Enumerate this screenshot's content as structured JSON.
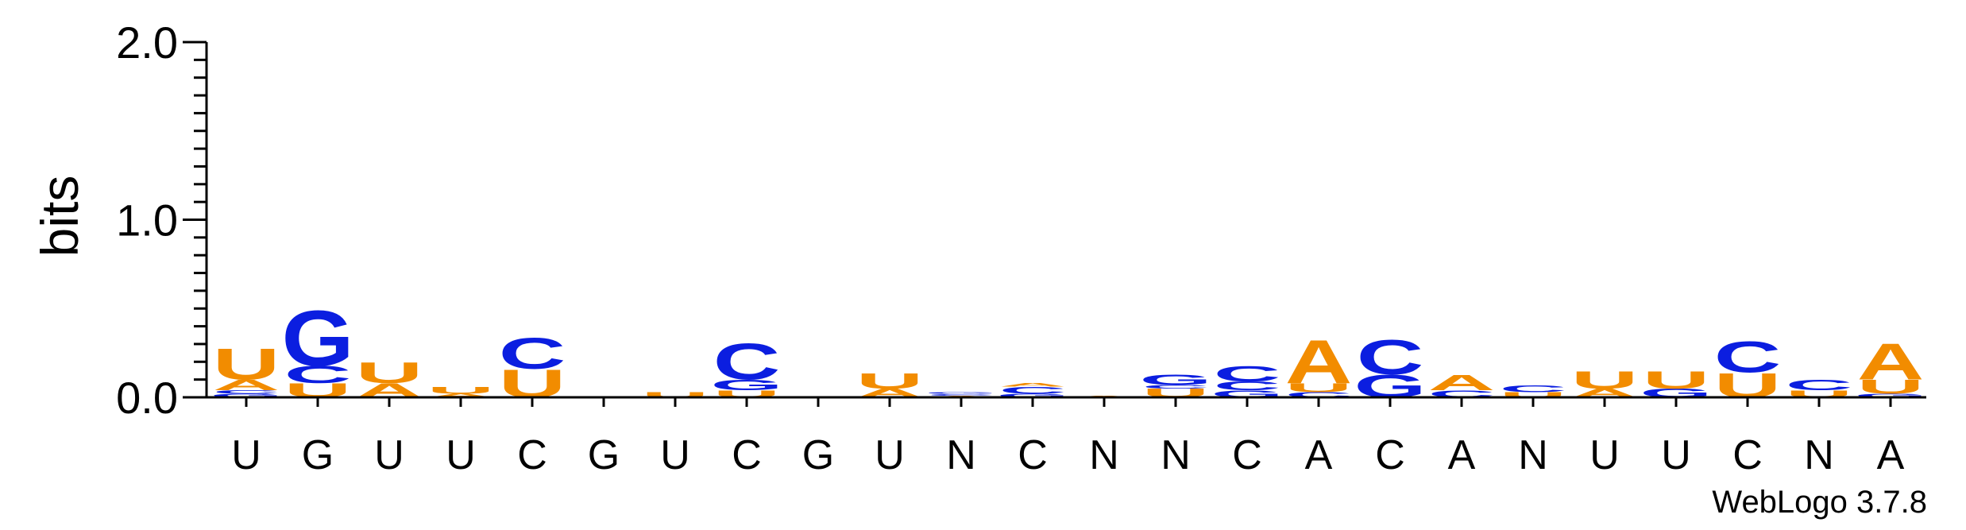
{
  "chart_data": {
    "type": "sequence-logo",
    "title": "",
    "ylabel": "bits",
    "ylim": [
      0,
      2.0
    ],
    "yticks": [
      "0.0",
      "1.0",
      "2.0"
    ],
    "colors": {
      "A": "#f28c00",
      "U": "#f28c00",
      "C": "#0b1ee0",
      "G": "#0b1ee0"
    },
    "xlabels": [
      "U",
      "G",
      "U",
      "U",
      "C",
      "G",
      "U",
      "C",
      "G",
      "U",
      "N",
      "C",
      "N",
      "N",
      "C",
      "A",
      "C",
      "A",
      "N",
      "U",
      "U",
      "C",
      "N",
      "A"
    ],
    "stacks": [
      [
        [
          "G",
          0.02
        ],
        [
          "C",
          0.02
        ],
        [
          "A",
          0.06
        ],
        [
          "U",
          0.18
        ]
      ],
      [
        [
          "U",
          0.08
        ],
        [
          "C",
          0.1
        ],
        [
          "G",
          0.32
        ]
      ],
      [
        [
          "A",
          0.08
        ],
        [
          "U",
          0.12
        ]
      ],
      [
        [
          "A",
          0.02
        ],
        [
          "U",
          0.04
        ]
      ],
      [
        [
          "U",
          0.16
        ],
        [
          "C",
          0.18
        ]
      ],
      [],
      [
        [
          "U",
          0.03
        ]
      ],
      [
        [
          "U",
          0.04
        ],
        [
          "G",
          0.06
        ],
        [
          "C",
          0.21
        ]
      ],
      [],
      [
        [
          "A",
          0.05
        ],
        [
          "U",
          0.09
        ]
      ],
      [
        [
          "A",
          0.01
        ],
        [
          "C",
          0.01
        ],
        [
          "G",
          0.01
        ]
      ],
      [
        [
          "G",
          0.02
        ],
        [
          "C",
          0.04
        ],
        [
          "A",
          0.02
        ]
      ],
      [
        [
          "A",
          0.01
        ]
      ],
      [
        [
          "U",
          0.05
        ],
        [
          "C",
          0.02
        ],
        [
          "G",
          0.06
        ]
      ],
      [
        [
          "G",
          0.04
        ],
        [
          "C",
          0.05
        ],
        [
          "C",
          0.09
        ]
      ],
      [
        [
          "C",
          0.03
        ],
        [
          "U",
          0.05
        ],
        [
          "A",
          0.25
        ]
      ],
      [
        [
          "G",
          0.13
        ],
        [
          "C",
          0.2
        ]
      ],
      [
        [
          "C",
          0.04
        ],
        [
          "A",
          0.09
        ]
      ],
      [
        [
          "U",
          0.03
        ],
        [
          "C",
          0.04
        ]
      ],
      [
        [
          "A",
          0.05
        ],
        [
          "U",
          0.1
        ]
      ],
      [
        [
          "G",
          0.05
        ],
        [
          "U",
          0.1
        ]
      ],
      [
        [
          "U",
          0.14
        ],
        [
          "C",
          0.18
        ]
      ],
      [
        [
          "U",
          0.04
        ],
        [
          "C",
          0.06
        ]
      ],
      [
        [
          "G",
          0.02
        ],
        [
          "U",
          0.08
        ],
        [
          "A",
          0.21
        ]
      ]
    ]
  },
  "footer": {
    "credit": "WebLogo 3.7.8"
  }
}
